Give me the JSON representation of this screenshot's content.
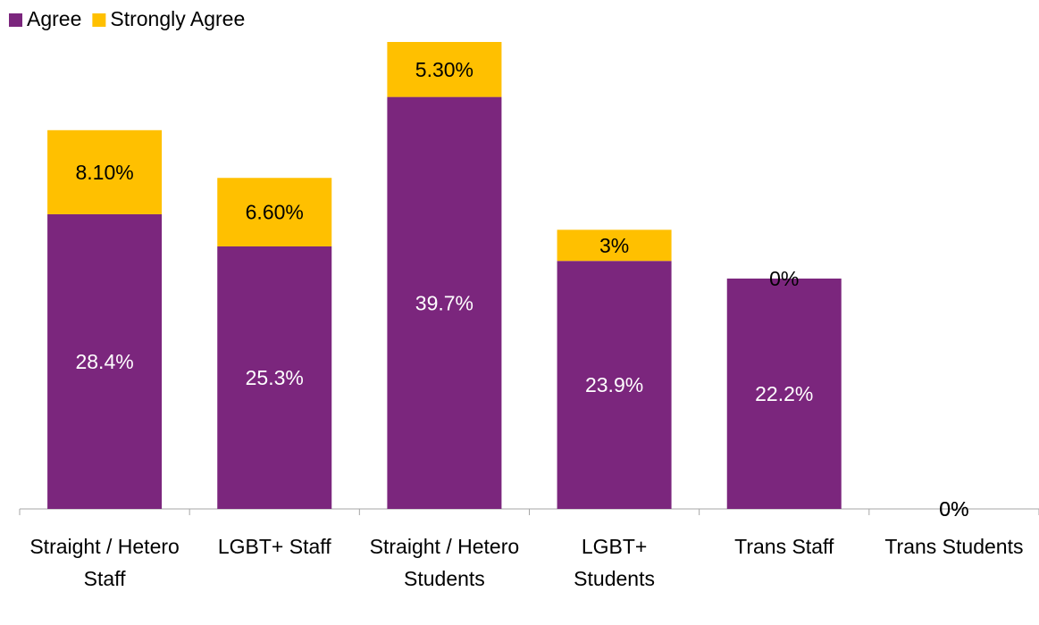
{
  "chart_data": {
    "type": "stacked-bar",
    "categories": [
      "Straight / Hetero Staff",
      "LGBT+ Staff",
      "Straight / Hetero Students",
      "LGBT+ Students",
      "Trans Staff",
      "Trans Students"
    ],
    "series": [
      {
        "name": "Agree",
        "color": "#7b267d",
        "values": [
          28.4,
          25.3,
          39.7,
          23.9,
          22.2,
          0
        ],
        "value_labels": [
          "28.4%",
          "25.3%",
          "39.7%",
          "23.9%",
          "22.2%",
          "0%"
        ]
      },
      {
        "name": "Strongly Agree",
        "color": "#ffc000",
        "values": [
          8.1,
          6.6,
          5.3,
          3,
          0,
          0
        ],
        "value_labels": [
          "8.10%",
          "6.60%",
          "5.30%",
          "3%",
          "0%",
          "0%"
        ]
      }
    ],
    "ylim": [
      0,
      45
    ],
    "legend": "top-left"
  }
}
